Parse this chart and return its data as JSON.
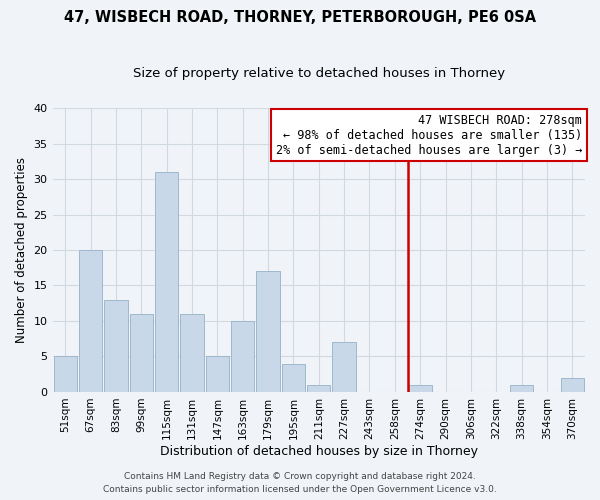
{
  "title": "47, WISBECH ROAD, THORNEY, PETERBOROUGH, PE6 0SA",
  "subtitle": "Size of property relative to detached houses in Thorney",
  "xlabel": "Distribution of detached houses by size in Thorney",
  "ylabel": "Number of detached properties",
  "bar_labels": [
    "51sqm",
    "67sqm",
    "83sqm",
    "99sqm",
    "115sqm",
    "131sqm",
    "147sqm",
    "163sqm",
    "179sqm",
    "195sqm",
    "211sqm",
    "227sqm",
    "243sqm",
    "258sqm",
    "274sqm",
    "290sqm",
    "306sqm",
    "322sqm",
    "338sqm",
    "354sqm",
    "370sqm"
  ],
  "bar_values": [
    5,
    20,
    13,
    11,
    31,
    11,
    5,
    10,
    17,
    4,
    1,
    7,
    0,
    0,
    1,
    0,
    0,
    0,
    1,
    0,
    2
  ],
  "bar_color": "#c8d8e8",
  "bar_edge_color": "#a0b8cc",
  "vline_x_index": 14,
  "vline_color": "#cc0000",
  "annotation_title": "47 WISBECH ROAD: 278sqm",
  "annotation_line1": "← 98% of detached houses are smaller (135)",
  "annotation_line2": "2% of semi-detached houses are larger (3) →",
  "annotation_box_color": "#ffffff",
  "annotation_box_edge": "#cc0000",
  "ylim": [
    0,
    40
  ],
  "yticks": [
    0,
    5,
    10,
    15,
    20,
    25,
    30,
    35,
    40
  ],
  "footer1": "Contains HM Land Registry data © Crown copyright and database right 2024.",
  "footer2": "Contains public sector information licensed under the Open Government Licence v3.0.",
  "bg_color": "#f0f4f8",
  "grid_color": "#d0d8e0",
  "title_fontsize": 10.5,
  "subtitle_fontsize": 9.5,
  "annotation_fontsize": 8.5,
  "xlabel_fontsize": 9,
  "ylabel_fontsize": 8.5,
  "footer_fontsize": 6.5
}
